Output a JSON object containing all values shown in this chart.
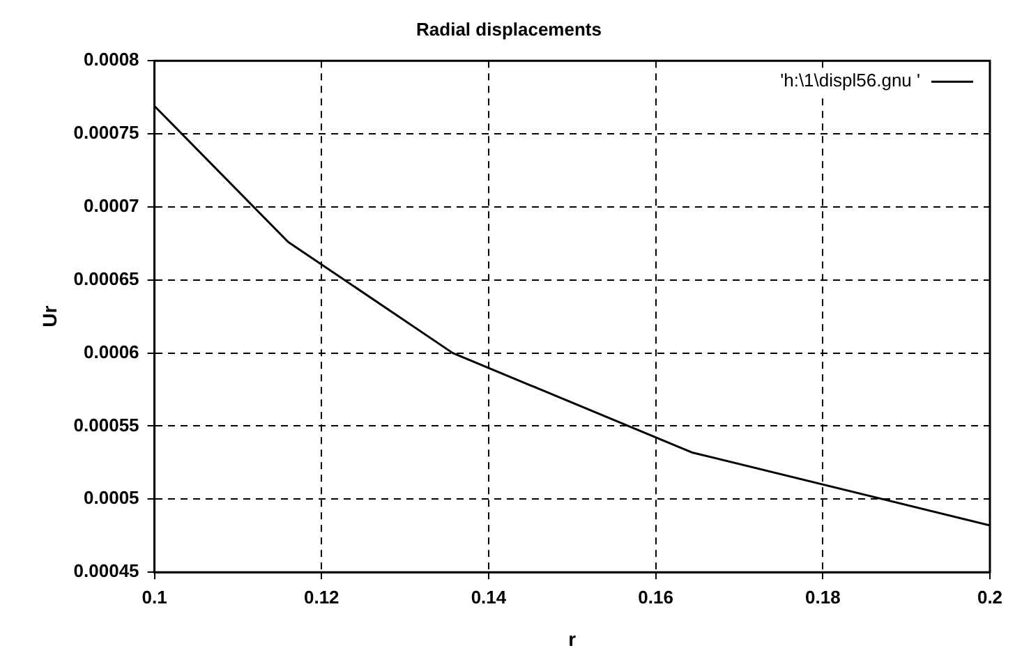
{
  "chart_data": {
    "type": "line",
    "title": "Radial displacements",
    "xlabel": "r",
    "ylabel": "Ur",
    "x": [
      0.1,
      0.116,
      0.1357,
      0.1643,
      0.2
    ],
    "series": [
      {
        "name": "'h:\\1\\displ56.gnu '",
        "color": "#000000",
        "values": [
          0.000769,
          0.000676,
          0.0006,
          0.000532,
          0.000482
        ]
      }
    ],
    "xlim": [
      0.1,
      0.2
    ],
    "xticks": [
      0.1,
      0.12,
      0.14,
      0.16,
      0.18,
      0.2
    ],
    "ylim": [
      0.00045,
      0.0008
    ],
    "yticks": [
      0.00045,
      0.0005,
      0.00055,
      0.0006,
      0.00065,
      0.0007,
      0.00075,
      0.0008
    ],
    "grid": true,
    "legend": "top right",
    "marker": "none",
    "line_style": "solid"
  }
}
